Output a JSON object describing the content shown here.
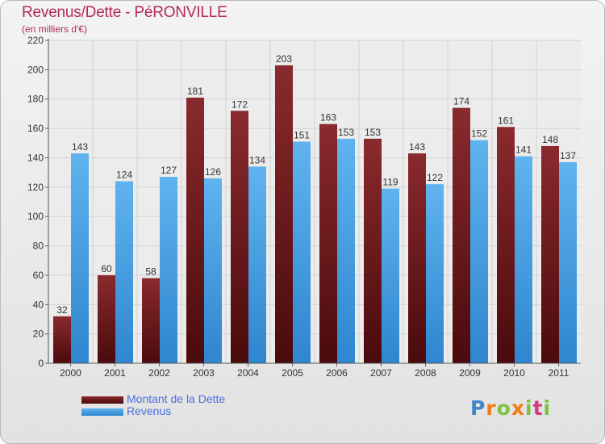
{
  "header": {
    "title": "Revenus/Dette - PéRONVILLE",
    "subtitle": "(en milliers d'€)"
  },
  "legend": {
    "dette": "Montant de la Dette",
    "revenus": "Revenus"
  },
  "logo": {
    "letters": [
      "P",
      "r",
      "o",
      "x",
      "i",
      "t",
      "i"
    ],
    "letter_colors": [
      "#3e86c8",
      "#f07c13",
      "#7dc142",
      "#f07c13",
      "#7dc142",
      "#d43a7c",
      "#7dc142"
    ]
  },
  "colors": {
    "dette_light": "#8a2a2e",
    "dette_dark": "#4a0a0c",
    "revenus_light": "#5fb3ee",
    "revenus_dark": "#2f86cf",
    "title": "#b22a59",
    "legend_text": "#4a6fe0"
  },
  "chart_data": {
    "type": "bar",
    "categories": [
      "2000",
      "2001",
      "2002",
      "2003",
      "2004",
      "2005",
      "2006",
      "2007",
      "2008",
      "2009",
      "2010",
      "2011"
    ],
    "series": [
      {
        "name": "Montant de la Dette",
        "values": [
          32,
          60,
          58,
          181,
          172,
          203,
          163,
          153,
          143,
          174,
          161,
          148
        ]
      },
      {
        "name": "Revenus",
        "values": [
          143,
          124,
          127,
          126,
          134,
          151,
          153,
          119,
          122,
          152,
          141,
          137
        ]
      }
    ],
    "yticks": [
      0,
      20,
      40,
      60,
      80,
      100,
      120,
      140,
      160,
      180,
      200,
      220
    ],
    "ylim": [
      0,
      220
    ],
    "grid": true,
    "legend_position": "bottom-left"
  }
}
